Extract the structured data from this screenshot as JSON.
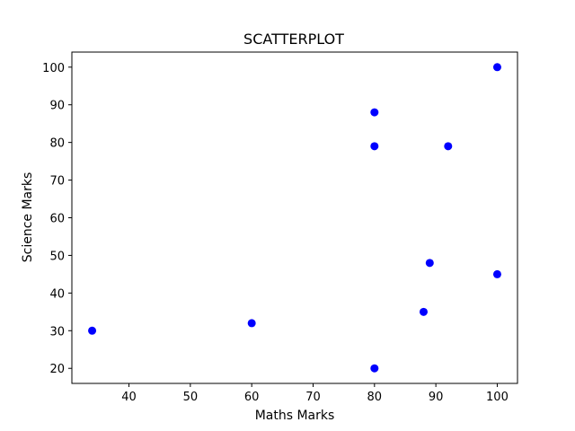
{
  "chart_data": {
    "type": "scatter",
    "title": "SCATTERPLOT",
    "xlabel": "Maths Marks",
    "ylabel": "Science Marks",
    "xlim": [
      30.7,
      103.3
    ],
    "ylim": [
      16,
      104
    ],
    "x_ticks": [
      40,
      50,
      60,
      70,
      80,
      90,
      100
    ],
    "y_ticks": [
      20,
      30,
      40,
      50,
      60,
      70,
      80,
      90,
      100
    ],
    "grid": false,
    "legend": "none",
    "point_color": "#0000ff",
    "series": [
      {
        "x": [
          100,
          80,
          80,
          92,
          89,
          100,
          88,
          34,
          60,
          80
        ],
        "y": [
          100,
          88,
          79,
          79,
          48,
          45,
          35,
          30,
          32,
          20
        ]
      }
    ]
  }
}
